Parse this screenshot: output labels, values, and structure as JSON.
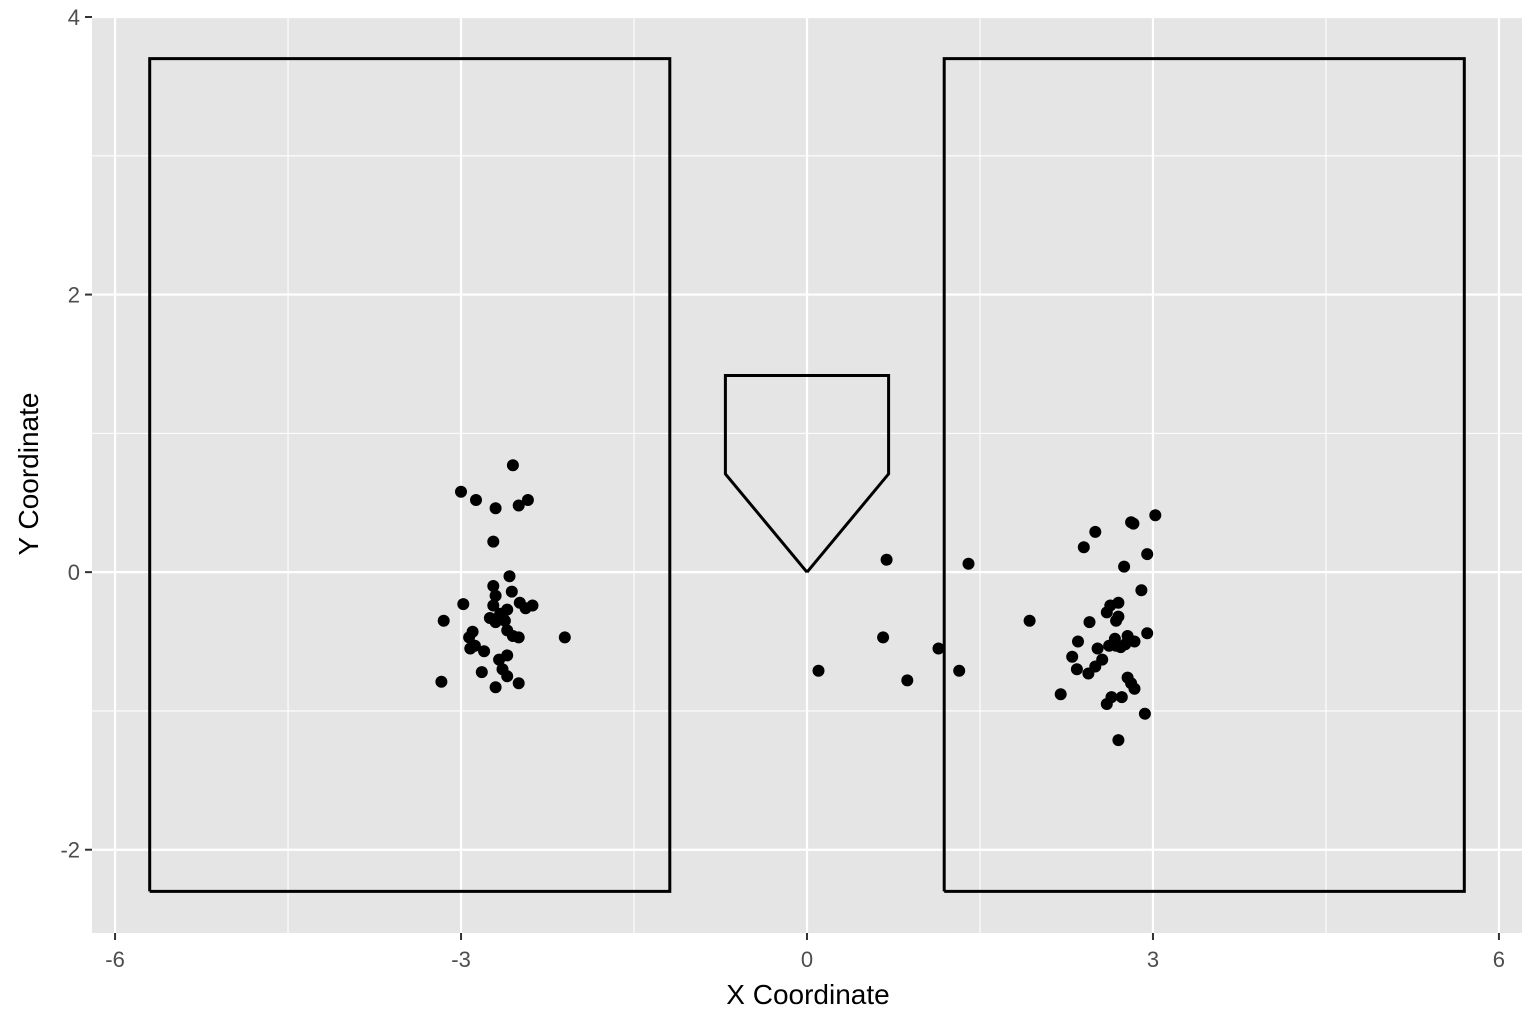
{
  "chart_data": {
    "type": "scatter",
    "title": "",
    "xlabel": "X Coordinate",
    "ylabel": "Y Coordinate",
    "xlim": [
      -6.2,
      6.2
    ],
    "ylim": [
      -2.6,
      4.0
    ],
    "grid": true,
    "legend": "none",
    "x_ticks": [
      -6,
      -3,
      0,
      3,
      6
    ],
    "x_tick_labels": [
      "-6",
      "-3",
      "0",
      "3",
      "6"
    ],
    "y_ticks": [
      -2,
      0,
      2,
      4
    ],
    "y_tick_labels": [
      "-2",
      "0",
      "2",
      "4"
    ],
    "colors": {
      "panel": "#e5e5e5",
      "grid": "#ffffff",
      "points": "#000000",
      "outline": "#000000"
    },
    "shapes": [
      {
        "name": "left-batters-box",
        "points": [
          [
            -5.7,
            -2.3
          ],
          [
            -1.19,
            -2.3
          ],
          [
            -1.19,
            3.7
          ],
          [
            -5.7,
            3.7
          ],
          [
            -5.7,
            -2.3
          ]
        ]
      },
      {
        "name": "right-batters-box",
        "points": [
          [
            1.19,
            -2.3
          ],
          [
            5.7,
            -2.3
          ],
          [
            5.7,
            3.7
          ],
          [
            1.19,
            3.7
          ],
          [
            1.19,
            -2.3
          ]
        ]
      },
      {
        "name": "home-plate",
        "points": [
          [
            0,
            0
          ],
          [
            -0.708,
            0.708
          ],
          [
            -0.708,
            1.417
          ],
          [
            0.708,
            1.417
          ],
          [
            0.708,
            0.708
          ],
          [
            0,
            0
          ]
        ]
      }
    ],
    "points": [
      [
        -2.55,
        0.77
      ],
      [
        -3.0,
        0.58
      ],
      [
        -2.87,
        0.52
      ],
      [
        -2.42,
        0.52
      ],
      [
        -2.5,
        0.48
      ],
      [
        -2.7,
        0.46
      ],
      [
        -2.72,
        0.22
      ],
      [
        -2.58,
        -0.03
      ],
      [
        -2.72,
        -0.1
      ],
      [
        -2.56,
        -0.14
      ],
      [
        -2.7,
        -0.17
      ],
      [
        -2.49,
        -0.22
      ],
      [
        -2.38,
        -0.24
      ],
      [
        -2.98,
        -0.23
      ],
      [
        -2.72,
        -0.24
      ],
      [
        -2.44,
        -0.26
      ],
      [
        -2.6,
        -0.27
      ],
      [
        -2.66,
        -0.3
      ],
      [
        -2.75,
        -0.33
      ],
      [
        -2.62,
        -0.35
      ],
      [
        -2.7,
        -0.36
      ],
      [
        -3.15,
        -0.35
      ],
      [
        -2.6,
        -0.42
      ],
      [
        -2.9,
        -0.43
      ],
      [
        -2.55,
        -0.46
      ],
      [
        -2.5,
        -0.47
      ],
      [
        -2.93,
        -0.47
      ],
      [
        -2.1,
        -0.47
      ],
      [
        -2.88,
        -0.53
      ],
      [
        -2.92,
        -0.55
      ],
      [
        -2.8,
        -0.57
      ],
      [
        -2.6,
        -0.6
      ],
      [
        -2.67,
        -0.63
      ],
      [
        -2.64,
        -0.7
      ],
      [
        -2.82,
        -0.72
      ],
      [
        -2.6,
        -0.75
      ],
      [
        -2.5,
        -0.8
      ],
      [
        -3.17,
        -0.79
      ],
      [
        -2.7,
        -0.83
      ],
      [
        0.1,
        -0.71
      ],
      [
        0.69,
        0.09
      ],
      [
        0.66,
        -0.47
      ],
      [
        0.87,
        -0.78
      ],
      [
        1.14,
        -0.55
      ],
      [
        1.32,
        -0.71
      ],
      [
        1.4,
        0.06
      ],
      [
        3.02,
        0.41
      ],
      [
        2.83,
        0.35
      ],
      [
        2.81,
        0.36
      ],
      [
        2.5,
        0.29
      ],
      [
        2.4,
        0.18
      ],
      [
        2.95,
        0.13
      ],
      [
        2.75,
        0.04
      ],
      [
        2.9,
        -0.13
      ],
      [
        2.7,
        -0.22
      ],
      [
        2.63,
        -0.24
      ],
      [
        2.6,
        -0.29
      ],
      [
        2.7,
        -0.32
      ],
      [
        2.68,
        -0.35
      ],
      [
        2.45,
        -0.36
      ],
      [
        1.93,
        -0.35
      ],
      [
        2.95,
        -0.44
      ],
      [
        2.78,
        -0.46
      ],
      [
        2.67,
        -0.48
      ],
      [
        2.35,
        -0.5
      ],
      [
        2.84,
        -0.5
      ],
      [
        2.76,
        -0.52
      ],
      [
        2.68,
        -0.53
      ],
      [
        2.72,
        -0.54
      ],
      [
        2.62,
        -0.53
      ],
      [
        2.52,
        -0.55
      ],
      [
        2.3,
        -0.61
      ],
      [
        2.56,
        -0.63
      ],
      [
        2.5,
        -0.68
      ],
      [
        2.34,
        -0.7
      ],
      [
        2.44,
        -0.73
      ],
      [
        2.78,
        -0.76
      ],
      [
        2.81,
        -0.8
      ],
      [
        2.84,
        -0.84
      ],
      [
        2.2,
        -0.88
      ],
      [
        2.64,
        -0.9
      ],
      [
        2.73,
        -0.9
      ],
      [
        2.6,
        -0.95
      ],
      [
        2.93,
        -1.02
      ],
      [
        2.7,
        -1.21
      ]
    ]
  }
}
